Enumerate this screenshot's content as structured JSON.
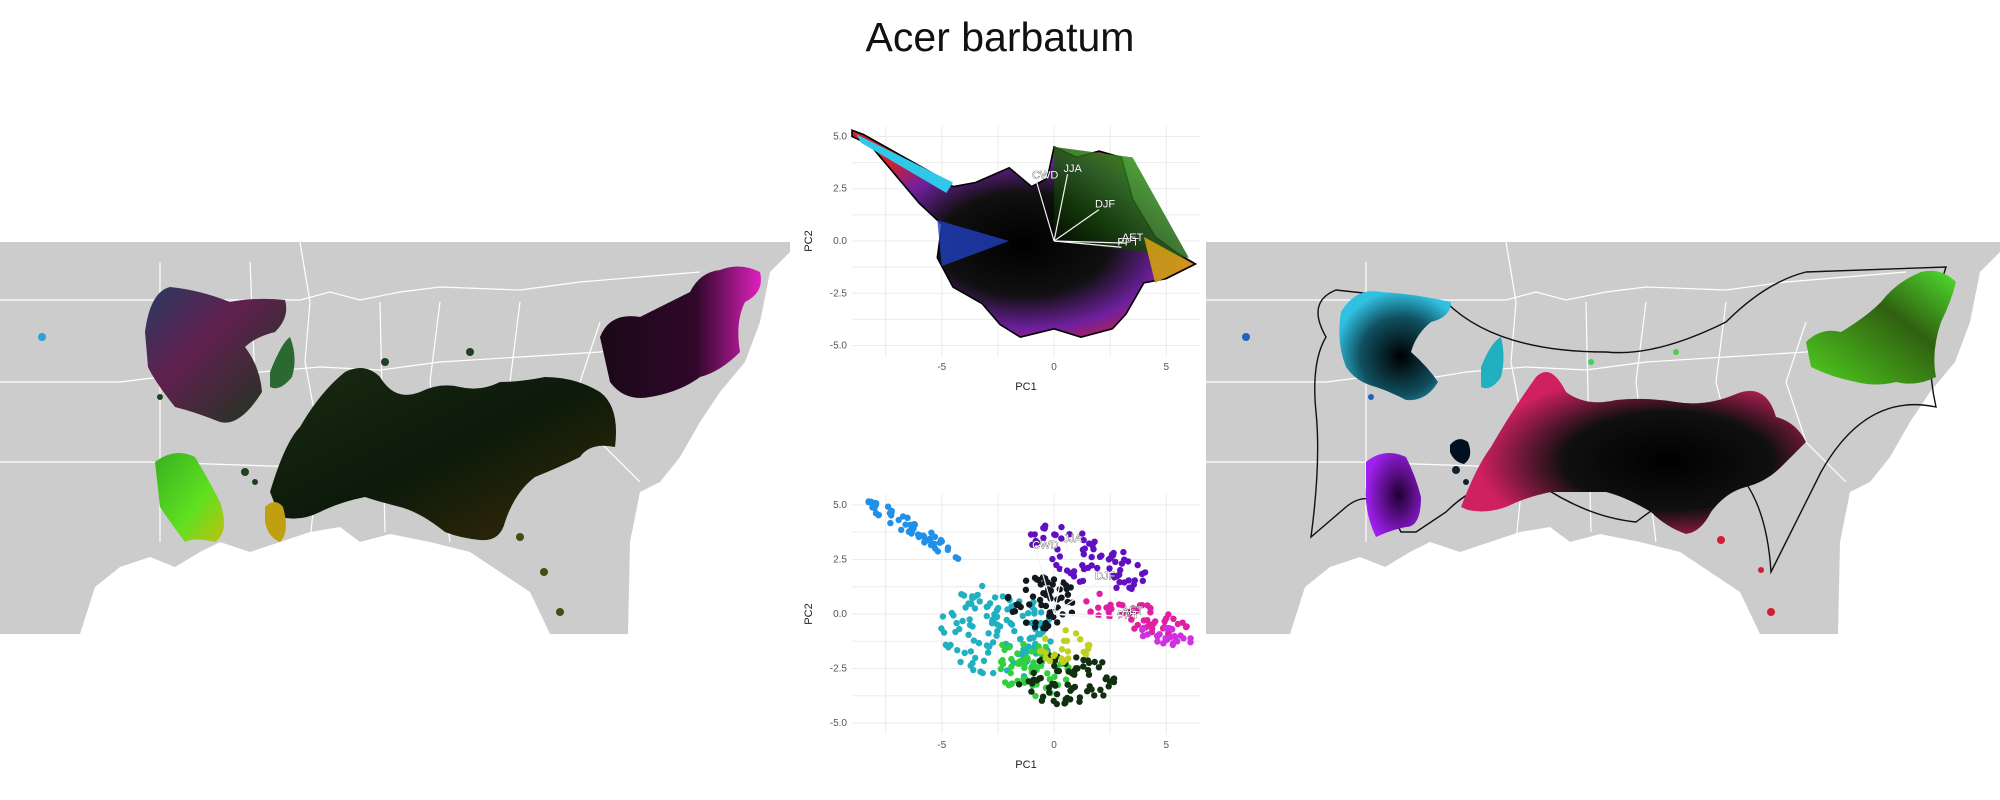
{
  "title": "Acer barbatum",
  "colors": {
    "land": "#cccccc",
    "state_border": "#ffffff",
    "background": "#ffffff"
  },
  "chart_data": [
    {
      "type": "map",
      "panel": "left",
      "description_fill": "rgb-by-pca"
    },
    {
      "type": "scatter",
      "panel": "top-center",
      "xlabel": "PC1",
      "ylabel": "PC2",
      "xlim": [
        -9,
        6.5
      ],
      "ylim": [
        -5.5,
        5.5
      ],
      "xticks": [
        -5,
        0,
        5
      ],
      "yticks": [
        -5.0,
        -2.5,
        0.0,
        2.5,
        5.0
      ],
      "xtick_labels": [
        "-5",
        "0",
        "5"
      ],
      "ytick_labels": [
        "-5.0",
        "-2.5",
        "0.0",
        "2.5",
        "5.0"
      ],
      "vectors": [
        {
          "name": "CWD",
          "x": -0.8,
          "y": 2.9
        },
        {
          "name": "JJA",
          "x": 0.6,
          "y": 3.2
        },
        {
          "name": "DJF",
          "x": 2.0,
          "y": 1.5
        },
        {
          "name": "PPT",
          "x": 3.0,
          "y": -0.3
        },
        {
          "name": "AET",
          "x": 3.2,
          "y": -0.1
        }
      ]
    },
    {
      "type": "scatter",
      "panel": "bottom-center",
      "xlabel": "PC1",
      "ylabel": "PC2",
      "xlim": [
        -9,
        6.5
      ],
      "ylim": [
        -5.5,
        5.5
      ],
      "xticks": [
        -5,
        0,
        5
      ],
      "yticks": [
        -5.0,
        -2.5,
        0.0,
        2.5,
        5.0
      ],
      "xtick_labels": [
        "-5",
        "0",
        "5"
      ],
      "ytick_labels": [
        "-5.0",
        "-2.5",
        "0.0",
        "2.5",
        "5.0"
      ],
      "vectors": [
        {
          "name": "CWD",
          "x": -0.8,
          "y": 2.9
        },
        {
          "name": "JJA",
          "x": 0.6,
          "y": 3.2
        },
        {
          "name": "DJF",
          "x": 2.0,
          "y": 1.5
        },
        {
          "name": "PPT",
          "x": 3.0,
          "y": -0.3
        },
        {
          "name": "AET",
          "x": 3.2,
          "y": -0.1
        }
      ]
    },
    {
      "type": "map",
      "panel": "right",
      "description_fill": "rgb-by-pca"
    }
  ]
}
